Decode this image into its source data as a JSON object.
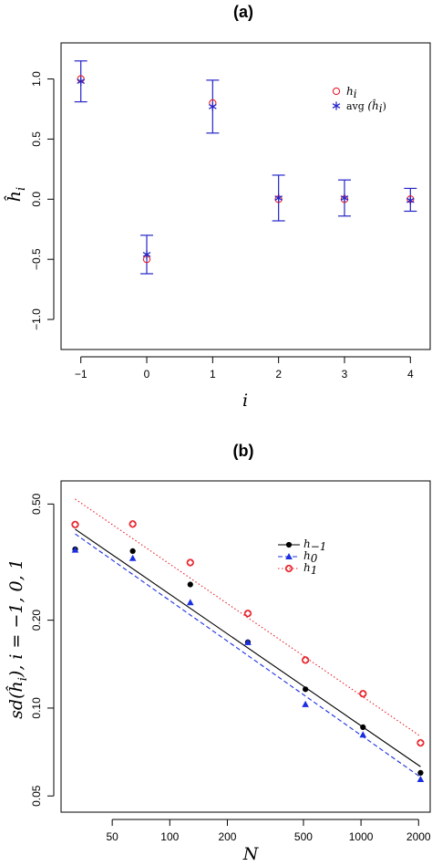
{
  "chart_data": [
    {
      "type": "scatter",
      "title": "(a)",
      "xlabel": "i",
      "ylabel": "ĥ",
      "ylabel_sub": "i",
      "x_ticks": [
        -1,
        0,
        1,
        2,
        3,
        4
      ],
      "y_ticks": [
        1.0,
        0.5,
        0.0,
        -0.5,
        -1.0
      ],
      "x_tick_labels": [
        "−1",
        "0",
        "1",
        "2",
        "3",
        "4"
      ],
      "y_tick_labels": [
        "1.0",
        "0.5",
        "0.0",
        "−0.5",
        "−1.0"
      ],
      "xlim": [
        -1.3,
        4.3
      ],
      "ylim": [
        -1.25,
        1.3
      ],
      "legend": {
        "position": "top-right",
        "entries": [
          {
            "symbol": "circle",
            "label_main": "h",
            "label_sub": "i",
            "color": "#e8212a"
          },
          {
            "symbol": "asterisk",
            "label_main": "avg",
            "label_rest": "(ĥ",
            "label_sub": "i",
            "label_close": ")",
            "color": "#2424c8"
          }
        ]
      },
      "series": [
        {
          "name": "h_i",
          "marker": "circle",
          "color": "#e8212a",
          "x": [
            -1,
            0,
            1,
            2,
            3,
            4
          ],
          "y": [
            1.0,
            -0.5,
            0.8,
            0.0,
            0.0,
            0.0
          ]
        },
        {
          "name": "avg(ĥ_i)",
          "marker": "asterisk",
          "color": "#2424c8",
          "x": [
            -1,
            0,
            1,
            2,
            3,
            4
          ],
          "y": [
            0.98,
            -0.46,
            0.77,
            0.01,
            0.01,
            -0.01
          ],
          "err_low": [
            0.81,
            -0.62,
            0.55,
            -0.18,
            -0.14,
            -0.1
          ],
          "err_high": [
            1.15,
            -0.3,
            0.99,
            0.2,
            0.16,
            0.09
          ]
        }
      ]
    },
    {
      "type": "scatter",
      "title": "(b)",
      "xlabel": "N",
      "ylabel": "sd(ĥ",
      "ylabel_sub": "i",
      "ylabel_rest": "), i = −1, 0, 1",
      "x_scale": "log",
      "y_scale": "log",
      "x_ticks": [
        50,
        100,
        200,
        500,
        1000,
        2000
      ],
      "y_ticks": [
        0.05,
        0.1,
        0.2,
        0.5
      ],
      "x_tick_labels": [
        "50",
        "100",
        "200",
        "500",
        "1000",
        "2000"
      ],
      "y_tick_labels": [
        "0.05",
        "0.10",
        "0.20",
        "0.50"
      ],
      "xlim": [
        27,
        2300
      ],
      "ylim": [
        0.044,
        0.6
      ],
      "legend": {
        "position": "top-right",
        "entries": [
          {
            "symbol": "dot",
            "line": "solid",
            "label_main": "h",
            "label_sub": "−1",
            "color": "#000000"
          },
          {
            "symbol": "triangle",
            "line": "dashed",
            "label_main": "h",
            "label_sub": "0",
            "color": "#1b2fe0"
          },
          {
            "symbol": "diamond",
            "line": "dotted",
            "label_main": "h",
            "label_sub": "1",
            "color": "#e8212a"
          }
        ]
      },
      "series": [
        {
          "name": "h_-1",
          "marker": "dot",
          "color": "#000000",
          "x": [
            32,
            64,
            128,
            256,
            512,
            1024,
            2048
          ],
          "y": [
            0.35,
            0.345,
            0.265,
            0.168,
            0.116,
            0.086,
            0.06
          ],
          "fit": {
            "x": [
              32,
              2048
            ],
            "y": [
              0.41,
              0.063
            ],
            "line": "solid"
          }
        },
        {
          "name": "h_0",
          "marker": "triangle",
          "color": "#1b2fe0",
          "x": [
            32,
            64,
            128,
            256,
            512,
            1024,
            2048
          ],
          "y": [
            0.348,
            0.326,
            0.23,
            0.168,
            0.103,
            0.081,
            0.057
          ],
          "fit": {
            "x": [
              32,
              2048
            ],
            "y": [
              0.395,
              0.058
            ],
            "line": "dashed"
          }
        },
        {
          "name": "h_1",
          "marker": "diamond",
          "color": "#e8212a",
          "x": [
            32,
            64,
            128,
            256,
            512,
            1024,
            2048
          ],
          "y": [
            0.425,
            0.427,
            0.315,
            0.211,
            0.146,
            0.112,
            0.076
          ],
          "fit": {
            "x": [
              32,
              2048
            ],
            "y": [
              0.52,
              0.08
            ],
            "line": "dotted"
          }
        }
      ]
    }
  ]
}
